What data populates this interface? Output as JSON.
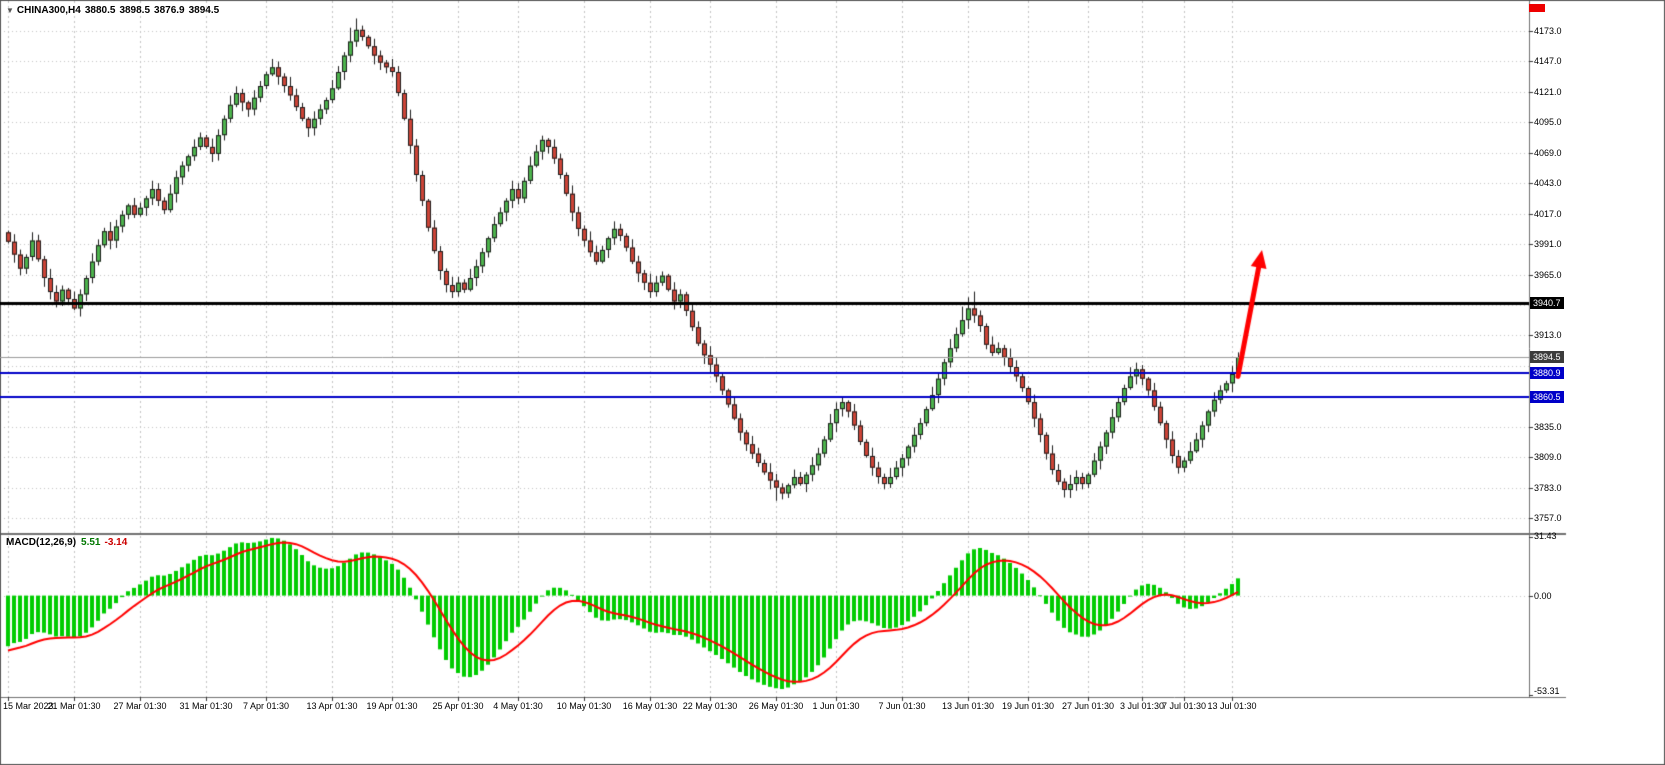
{
  "header": {
    "dropdown_icon": "▼",
    "symbol": "CHINA300,H4",
    "open": "3880.5",
    "high": "3898.5",
    "low": "3876.9",
    "close": "3894.5"
  },
  "top_right_marker": {
    "color": "#ee0000"
  },
  "chart_data": {
    "type": "candlestick",
    "symbol": "CHINA300",
    "timeframe": "H4",
    "last_candle_ohlc": {
      "open": 3880.5,
      "high": 3898.5,
      "low": 3876.9,
      "close": 3894.5
    },
    "price_axis": {
      "min": 3757.0,
      "max": 4173.0,
      "tick_step": 26,
      "visible_tick_labels": [
        "4173.0",
        "4147.0",
        "4121.0",
        "4095.0",
        "4069.0",
        "4043.0",
        "4017.0",
        "3991.0",
        "3965.0",
        "3913.0",
        "3835.0",
        "3809.0",
        "3783.0",
        "3757.0"
      ]
    },
    "time_ticks": [
      {
        "label": "15 Mar 2023",
        "index": 0
      },
      {
        "label": "21 Mar 01:30",
        "index": 11
      },
      {
        "label": "27 Mar 01:30",
        "index": 22
      },
      {
        "label": "31 Mar 01:30",
        "index": 33
      },
      {
        "label": "7 Apr 01:30",
        "index": 43
      },
      {
        "label": "13 Apr 01:30",
        "index": 54
      },
      {
        "label": "19 Apr 01:30",
        "index": 64
      },
      {
        "label": "25 Apr 01:30",
        "index": 75
      },
      {
        "label": "4 May 01:30",
        "index": 85
      },
      {
        "label": "10 May 01:30",
        "index": 96
      },
      {
        "label": "16 May 01:30",
        "index": 107
      },
      {
        "label": "22 May 01:30",
        "index": 117
      },
      {
        "label": "26 May 01:30",
        "index": 128
      },
      {
        "label": "1 Jun 01:30",
        "index": 138
      },
      {
        "label": "7 Jun 01:30",
        "index": 149
      },
      {
        "label": "13 Jun 01:30",
        "index": 160
      },
      {
        "label": "19 Jun 01:30",
        "index": 170
      },
      {
        "label": "27 Jun 01:30",
        "index": 180
      },
      {
        "label": "3 Jul 01:30",
        "index": 189
      },
      {
        "label": "7 Jul 01:30",
        "index": 196
      },
      {
        "label": "13 Jul 01:30",
        "index": 204
      }
    ],
    "closes": [
      3993,
      3982,
      3970,
      3980,
      3994,
      3978,
      3962,
      3950,
      3942,
      3952,
      3944,
      3936,
      3948,
      3962,
      3976,
      3990,
      4002,
      3994,
      4006,
      4016,
      4024,
      4016,
      4022,
      4030,
      4038,
      4028,
      4020,
      4034,
      4048,
      4058,
      4066,
      4074,
      4082,
      4074,
      4068,
      4084,
      4098,
      4110,
      4120,
      4112,
      4106,
      4116,
      4126,
      4136,
      4142,
      4134,
      4126,
      4118,
      4108,
      4098,
      4090,
      4098,
      4106,
      4114,
      4124,
      4138,
      4152,
      4164,
      4174,
      4168,
      4160,
      4152,
      4146,
      4142,
      4138,
      4120,
      4098,
      4075,
      4050,
      4028,
      4005,
      3985,
      3968,
      3956,
      3950,
      3958,
      3952,
      3962,
      3972,
      3984,
      3996,
      4008,
      4018,
      4028,
      4038,
      4030,
      4045,
      4058,
      4070,
      4080,
      4074,
      4064,
      4050,
      4034,
      4018,
      4004,
      3994,
      3984,
      3976,
      3986,
      3996,
      4004,
      3998,
      3988,
      3976,
      3966,
      3958,
      3950,
      3958,
      3964,
      3952,
      3942,
      3948,
      3934,
      3920,
      3906,
      3896,
      3888,
      3878,
      3866,
      3854,
      3842,
      3830,
      3820,
      3812,
      3804,
      3796,
      3789,
      3783,
      3778,
      3785,
      3792,
      3786,
      3794,
      3802,
      3812,
      3824,
      3838,
      3850,
      3856,
      3848,
      3836,
      3822,
      3810,
      3800,
      3792,
      3786,
      3792,
      3800,
      3808,
      3818,
      3828,
      3838,
      3850,
      3862,
      3876,
      3890,
      3902,
      3914,
      3926,
      3936,
      3930,
      3921,
      3905,
      3898,
      3902,
      3894,
      3886,
      3878,
      3868,
      3856,
      3842,
      3828,
      3812,
      3798,
      3788,
      3781,
      3786,
      3792,
      3786,
      3794,
      3806,
      3818,
      3830,
      3843,
      3856,
      3868,
      3878,
      3884,
      3876,
      3866,
      3852,
      3838,
      3824,
      3810,
      3800,
      3806,
      3814,
      3824,
      3836,
      3848,
      3858,
      3866,
      3872,
      3880,
      3894.5
    ],
    "levels": [
      {
        "label": "3940.7",
        "value": 3940.7,
        "line_color": "#000000",
        "line_width": 3,
        "tag_bg": "#000000"
      },
      {
        "label": "3894.5",
        "value": 3894.5,
        "line_color": "#9a9a9a",
        "line_width": 1,
        "tag_bg": "#3c3c3c"
      },
      {
        "label": "3880.9",
        "value": 3880.9,
        "line_color": "#0000c8",
        "line_width": 2,
        "tag_bg": "#0000c8"
      },
      {
        "label": "3860.5",
        "value": 3860.5,
        "line_color": "#0000c8",
        "line_width": 2,
        "tag_bg": "#0000c8"
      }
    ],
    "indicator": {
      "label": "MACD(12,26,9)",
      "main_value": "5.51",
      "signal_value": "-3.14",
      "scale_labels": [
        "31.43",
        "0.00",
        "-53.31"
      ],
      "scale": {
        "max": 31.43,
        "min": -53.31
      },
      "histogram_color": "#00cc00",
      "signal_color": "#ff0000"
    },
    "annotations": [
      {
        "type": "arrow",
        "color": "#ff0000",
        "from_index": 205,
        "from_price": 3878,
        "to_index": 209,
        "to_price": 3986
      }
    ],
    "colors": {
      "up": "#4db34d",
      "down": "#cc4437",
      "outline": "#1c1c1c",
      "grid": "#c4c4c4"
    }
  }
}
